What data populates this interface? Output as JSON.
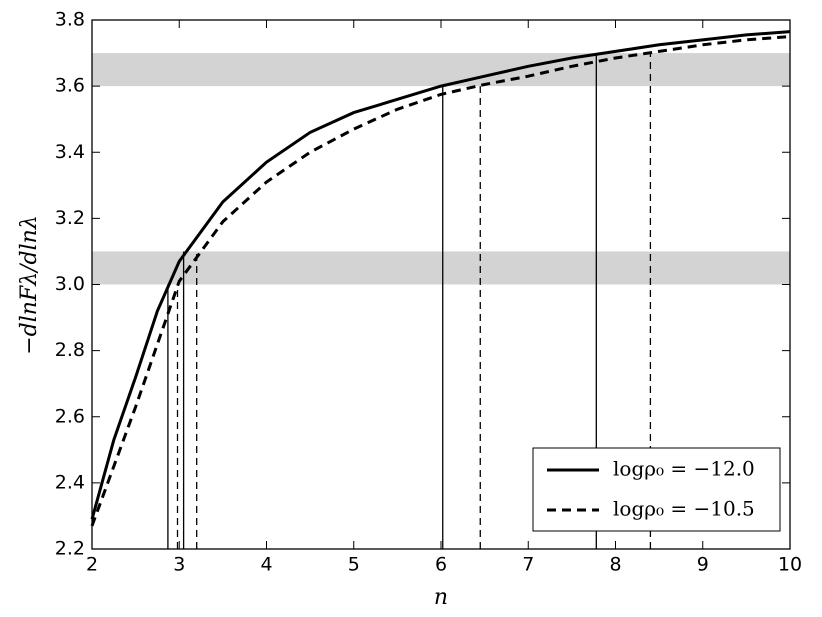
{
  "chart_data": {
    "type": "line",
    "xlabel": "n",
    "ylabel": "−dlnFλ/dlnλ",
    "x": [
      2,
      2.25,
      2.5,
      2.75,
      3,
      3.5,
      4,
      4.5,
      5,
      5.5,
      6,
      6.5,
      7,
      7.5,
      8,
      8.5,
      9,
      9.5,
      10
    ],
    "series": [
      {
        "name": "logρ₀ = −12.0",
        "color": "#000000",
        "dash": "solid",
        "values": [
          2.29,
          2.53,
          2.72,
          2.92,
          3.07,
          3.25,
          3.37,
          3.46,
          3.52,
          3.56,
          3.6,
          3.63,
          3.66,
          3.685,
          3.705,
          3.725,
          3.74,
          3.755,
          3.765
        ],
        "vlines": [
          {
            "x": 2.87,
            "y": 3.0
          },
          {
            "x": 3.05,
            "y": 3.1
          },
          {
            "x": 6.02,
            "y": 3.6
          },
          {
            "x": 7.78,
            "y": 3.7
          }
        ]
      },
      {
        "name": "logρ₀ = −10.5",
        "color": "#000000",
        "dash": "dashed",
        "values": [
          2.27,
          2.45,
          2.63,
          2.82,
          3.01,
          3.19,
          3.31,
          3.4,
          3.47,
          3.53,
          3.575,
          3.605,
          3.63,
          3.66,
          3.685,
          3.705,
          3.725,
          3.74,
          3.75
        ],
        "vlines": [
          {
            "x": 2.98,
            "y": 3.0
          },
          {
            "x": 3.2,
            "y": 3.1
          },
          {
            "x": 6.45,
            "y": 3.6
          },
          {
            "x": 8.4,
            "y": 3.7
          }
        ]
      }
    ],
    "bands": [
      [
        3.0,
        3.1
      ],
      [
        3.6,
        3.7
      ]
    ],
    "band_color": "#d3d3d3",
    "xlim": [
      2,
      10
    ],
    "xticks": [
      2,
      3,
      4,
      5,
      6,
      7,
      8,
      9,
      10
    ],
    "ylim": [
      2.2,
      3.8
    ],
    "yticks": [
      2.2,
      2.4,
      2.6,
      2.8,
      {
        "value": 3,
        "label": "3.0"
      },
      3.2,
      3.4,
      3.6,
      3.8
    ],
    "legend": "lower right"
  }
}
